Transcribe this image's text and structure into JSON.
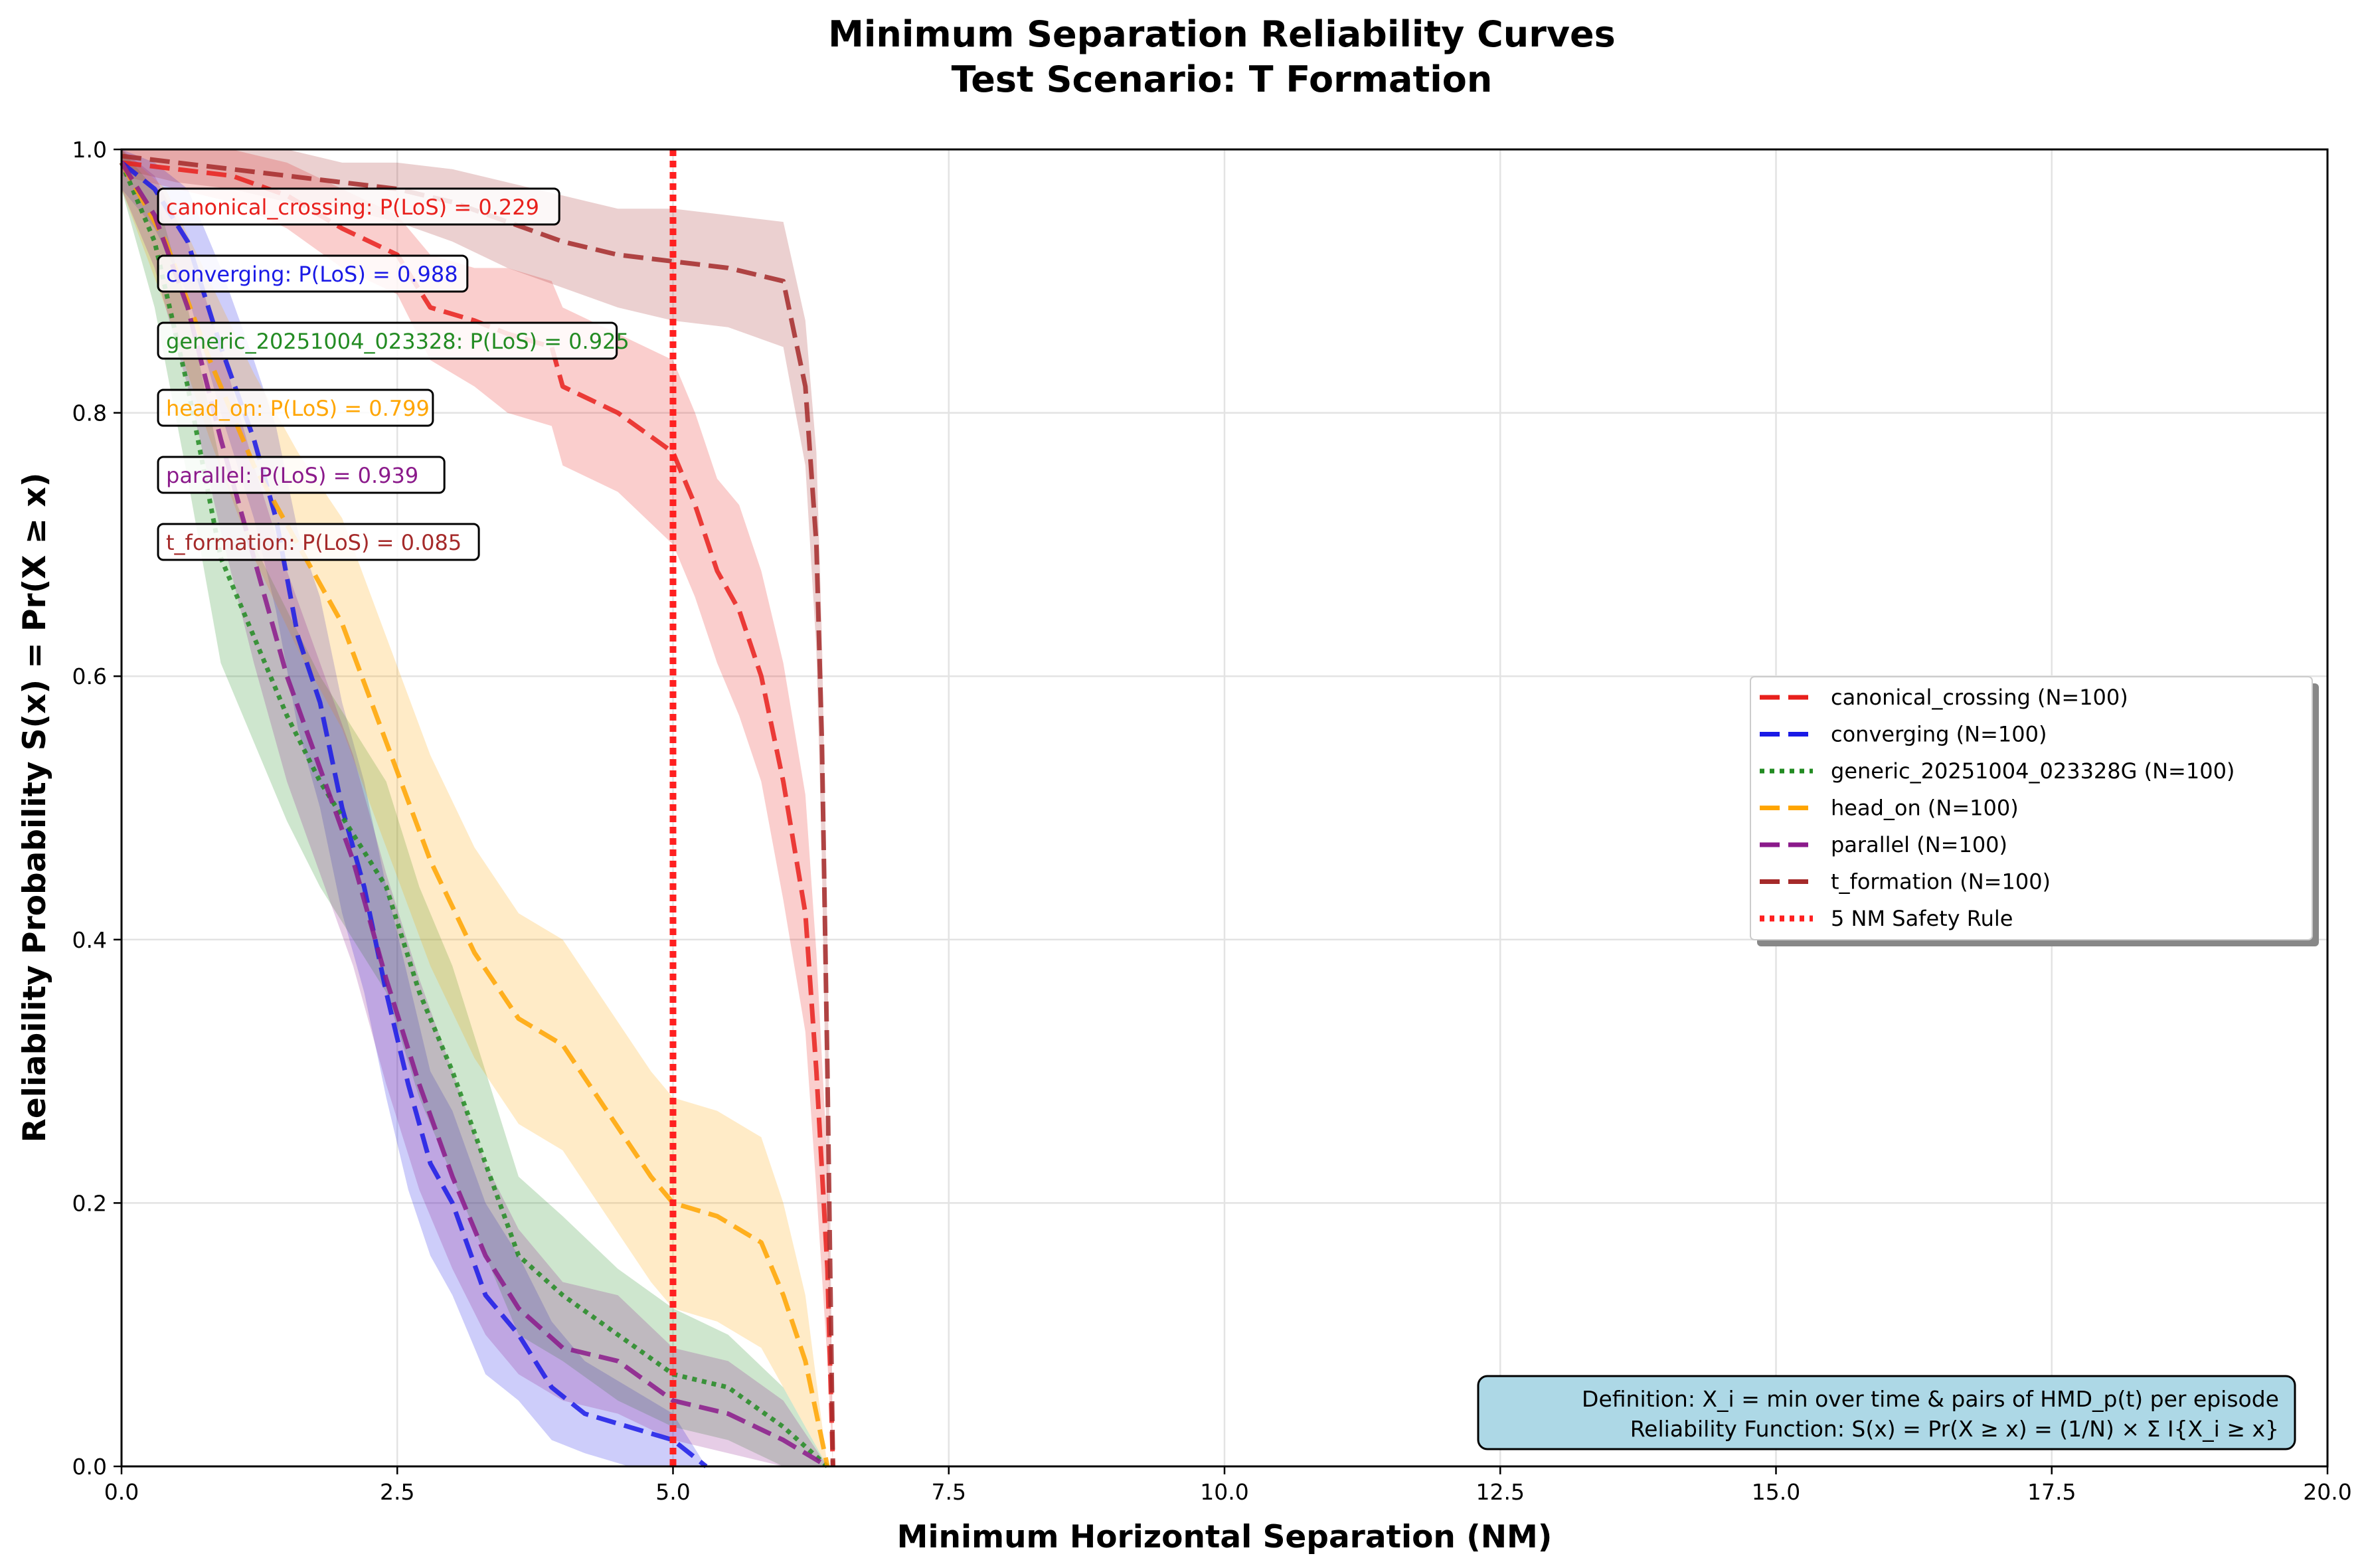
{
  "chart_data": {
    "type": "line",
    "title": "Minimum Separation Reliability Curves",
    "subtitle": "Test Scenario: T Formation",
    "xlabel": "Minimum Horizontal Separation (NM)",
    "ylabel": "Reliability Probability S(x) = Pr(X ≥ x)",
    "xlim": [
      0,
      20
    ],
    "ylim": [
      0,
      1
    ],
    "xticks": [
      "0.0",
      "2.5",
      "5.0",
      "7.5",
      "10.0",
      "12.5",
      "15.0",
      "17.5",
      "20.0"
    ],
    "yticks": [
      "0.0",
      "0.2",
      "0.4",
      "0.6",
      "0.8",
      "1.0"
    ],
    "grid": true,
    "legend_position": "center-right",
    "series": [
      {
        "name": "canonical_crossing (N=100)",
        "color": "#e8201c",
        "dash": "dashed",
        "x": [
          0.0,
          0.5,
          1.0,
          1.5,
          2.0,
          2.5,
          2.8,
          3.2,
          3.5,
          3.9,
          4.0,
          4.5,
          5.0,
          5.2,
          5.4,
          5.6,
          5.8,
          6.0,
          6.2,
          6.3,
          6.4,
          6.45
        ],
        "y": [
          0.99,
          0.985,
          0.98,
          0.965,
          0.94,
          0.92,
          0.88,
          0.87,
          0.86,
          0.85,
          0.82,
          0.8,
          0.77,
          0.73,
          0.68,
          0.65,
          0.6,
          0.52,
          0.42,
          0.3,
          0.15,
          0.0
        ],
        "band_lower": [
          0.98,
          0.97,
          0.96,
          0.94,
          0.91,
          0.89,
          0.84,
          0.82,
          0.8,
          0.79,
          0.76,
          0.74,
          0.7,
          0.66,
          0.61,
          0.57,
          0.52,
          0.43,
          0.33,
          0.21,
          0.08,
          0.0
        ],
        "band_upper": [
          1.0,
          1.0,
          1.0,
          0.99,
          0.97,
          0.95,
          0.92,
          0.91,
          0.91,
          0.9,
          0.88,
          0.86,
          0.84,
          0.8,
          0.75,
          0.73,
          0.68,
          0.61,
          0.51,
          0.39,
          0.23,
          0.0
        ]
      },
      {
        "name": "converging (N=100)",
        "color": "#1a1ae6",
        "dash": "dashed",
        "x": [
          0.0,
          0.3,
          0.6,
          0.9,
          1.2,
          1.4,
          1.6,
          1.8,
          2.0,
          2.2,
          2.4,
          2.6,
          2.8,
          3.0,
          3.3,
          3.6,
          3.9,
          4.2,
          4.6,
          5.0,
          5.3
        ],
        "y": [
          0.99,
          0.97,
          0.93,
          0.85,
          0.78,
          0.72,
          0.63,
          0.58,
          0.5,
          0.44,
          0.36,
          0.29,
          0.23,
          0.2,
          0.13,
          0.1,
          0.06,
          0.04,
          0.03,
          0.02,
          0.0
        ],
        "band_lower": [
          0.97,
          0.94,
          0.89,
          0.8,
          0.72,
          0.65,
          0.56,
          0.5,
          0.42,
          0.36,
          0.28,
          0.21,
          0.16,
          0.13,
          0.07,
          0.05,
          0.02,
          0.01,
          0.0,
          0.0,
          0.0
        ],
        "band_upper": [
          1.0,
          0.99,
          0.97,
          0.91,
          0.84,
          0.79,
          0.71,
          0.66,
          0.58,
          0.52,
          0.44,
          0.37,
          0.3,
          0.27,
          0.2,
          0.16,
          0.11,
          0.08,
          0.06,
          0.04,
          0.0
        ]
      },
      {
        "name": "generic_20251004_023328G (N=100)",
        "color": "#228b22",
        "dash": "dotted",
        "x": [
          0.0,
          0.3,
          0.6,
          0.9,
          1.2,
          1.5,
          1.8,
          2.1,
          2.4,
          2.7,
          3.0,
          3.3,
          3.6,
          4.0,
          4.5,
          5.0,
          5.5,
          6.0,
          6.4
        ],
        "y": [
          0.99,
          0.93,
          0.82,
          0.69,
          0.63,
          0.57,
          0.52,
          0.48,
          0.44,
          0.36,
          0.3,
          0.23,
          0.16,
          0.13,
          0.1,
          0.07,
          0.06,
          0.03,
          0.0
        ],
        "band_lower": [
          0.97,
          0.88,
          0.75,
          0.61,
          0.55,
          0.49,
          0.44,
          0.4,
          0.36,
          0.28,
          0.22,
          0.16,
          0.1,
          0.08,
          0.05,
          0.03,
          0.02,
          0.0,
          0.0
        ],
        "band_upper": [
          1.0,
          0.97,
          0.88,
          0.76,
          0.7,
          0.65,
          0.6,
          0.56,
          0.52,
          0.44,
          0.38,
          0.3,
          0.22,
          0.19,
          0.15,
          0.12,
          0.1,
          0.06,
          0.0
        ]
      },
      {
        "name": "head_on (N=100)",
        "color": "#ffa500",
        "dash": "dashed",
        "x": [
          0.0,
          0.4,
          0.8,
          1.2,
          1.6,
          2.0,
          2.4,
          2.8,
          3.2,
          3.6,
          4.0,
          4.4,
          4.8,
          5.0,
          5.4,
          5.8,
          6.0,
          6.2,
          6.4
        ],
        "y": [
          0.99,
          0.93,
          0.84,
          0.76,
          0.7,
          0.64,
          0.55,
          0.46,
          0.39,
          0.34,
          0.32,
          0.27,
          0.22,
          0.2,
          0.19,
          0.17,
          0.13,
          0.08,
          0.0
        ],
        "band_lower": [
          0.97,
          0.88,
          0.78,
          0.69,
          0.62,
          0.56,
          0.47,
          0.38,
          0.31,
          0.26,
          0.24,
          0.19,
          0.14,
          0.12,
          0.11,
          0.09,
          0.06,
          0.03,
          0.0
        ],
        "band_upper": [
          1.0,
          0.97,
          0.9,
          0.83,
          0.77,
          0.72,
          0.63,
          0.54,
          0.47,
          0.42,
          0.4,
          0.35,
          0.3,
          0.28,
          0.27,
          0.25,
          0.2,
          0.13,
          0.0
        ]
      },
      {
        "name": "parallel (N=100)",
        "color": "#8b1a8b",
        "dash": "dashed",
        "x": [
          0.0,
          0.3,
          0.6,
          0.9,
          1.2,
          1.5,
          1.8,
          2.1,
          2.4,
          2.7,
          3.0,
          3.3,
          3.6,
          4.0,
          4.5,
          5.0,
          5.5,
          6.0,
          6.4
        ],
        "y": [
          0.99,
          0.95,
          0.88,
          0.78,
          0.69,
          0.6,
          0.53,
          0.46,
          0.37,
          0.29,
          0.22,
          0.16,
          0.12,
          0.09,
          0.08,
          0.05,
          0.04,
          0.02,
          0.0
        ],
        "band_lower": [
          0.97,
          0.91,
          0.82,
          0.71,
          0.61,
          0.52,
          0.45,
          0.38,
          0.29,
          0.21,
          0.15,
          0.1,
          0.07,
          0.05,
          0.04,
          0.02,
          0.01,
          0.0,
          0.0
        ],
        "band_upper": [
          1.0,
          0.98,
          0.93,
          0.85,
          0.76,
          0.68,
          0.61,
          0.54,
          0.45,
          0.37,
          0.3,
          0.23,
          0.18,
          0.14,
          0.13,
          0.09,
          0.08,
          0.05,
          0.0
        ]
      },
      {
        "name": "t_formation (N=100)",
        "color": "#a52a2a",
        "dash": "dashed",
        "x": [
          0.0,
          0.5,
          1.0,
          1.5,
          2.0,
          2.5,
          3.0,
          3.5,
          4.0,
          4.5,
          5.0,
          5.5,
          6.0,
          6.2,
          6.3,
          6.35,
          6.4,
          6.45
        ],
        "y": [
          0.995,
          0.99,
          0.985,
          0.98,
          0.975,
          0.97,
          0.96,
          0.945,
          0.93,
          0.92,
          0.915,
          0.91,
          0.9,
          0.82,
          0.7,
          0.55,
          0.3,
          0.0
        ],
        "band_lower": [
          0.985,
          0.975,
          0.97,
          0.96,
          0.955,
          0.945,
          0.93,
          0.91,
          0.895,
          0.88,
          0.87,
          0.865,
          0.85,
          0.76,
          0.62,
          0.46,
          0.2,
          0.0
        ],
        "band_upper": [
          1.0,
          1.0,
          1.0,
          1.0,
          0.99,
          0.99,
          0.985,
          0.975,
          0.965,
          0.955,
          0.955,
          0.95,
          0.945,
          0.87,
          0.77,
          0.63,
          0.4,
          0.0
        ]
      }
    ],
    "reference_line": {
      "name": "5 NM Safety Rule",
      "x": 5.0,
      "color": "#ff2020",
      "dash": "dotted"
    },
    "annotations": [
      {
        "text": "canonical_crossing: P(LoS) = 0.229",
        "color": "#e8201c"
      },
      {
        "text": "converging: P(LoS) = 0.988",
        "color": "#1a1ae6"
      },
      {
        "text": "generic_20251004_023328: P(LoS) = 0.925",
        "color": "#228b22"
      },
      {
        "text": "head_on: P(LoS) = 0.799",
        "color": "#ffa500"
      },
      {
        "text": "parallel: P(LoS) = 0.939",
        "color": "#8b1a8b"
      },
      {
        "text": "t_formation: P(LoS) = 0.085",
        "color": "#a52a2a"
      }
    ],
    "definition_box": {
      "line1": "Definition: X_i = min over time & pairs of HMD_p(t) per episode",
      "line2": "Reliability Function: S(x) = Pr(X ≥ x) = (1/N) × Σ I{X_i ≥ x}",
      "background": "#add8e6"
    }
  }
}
